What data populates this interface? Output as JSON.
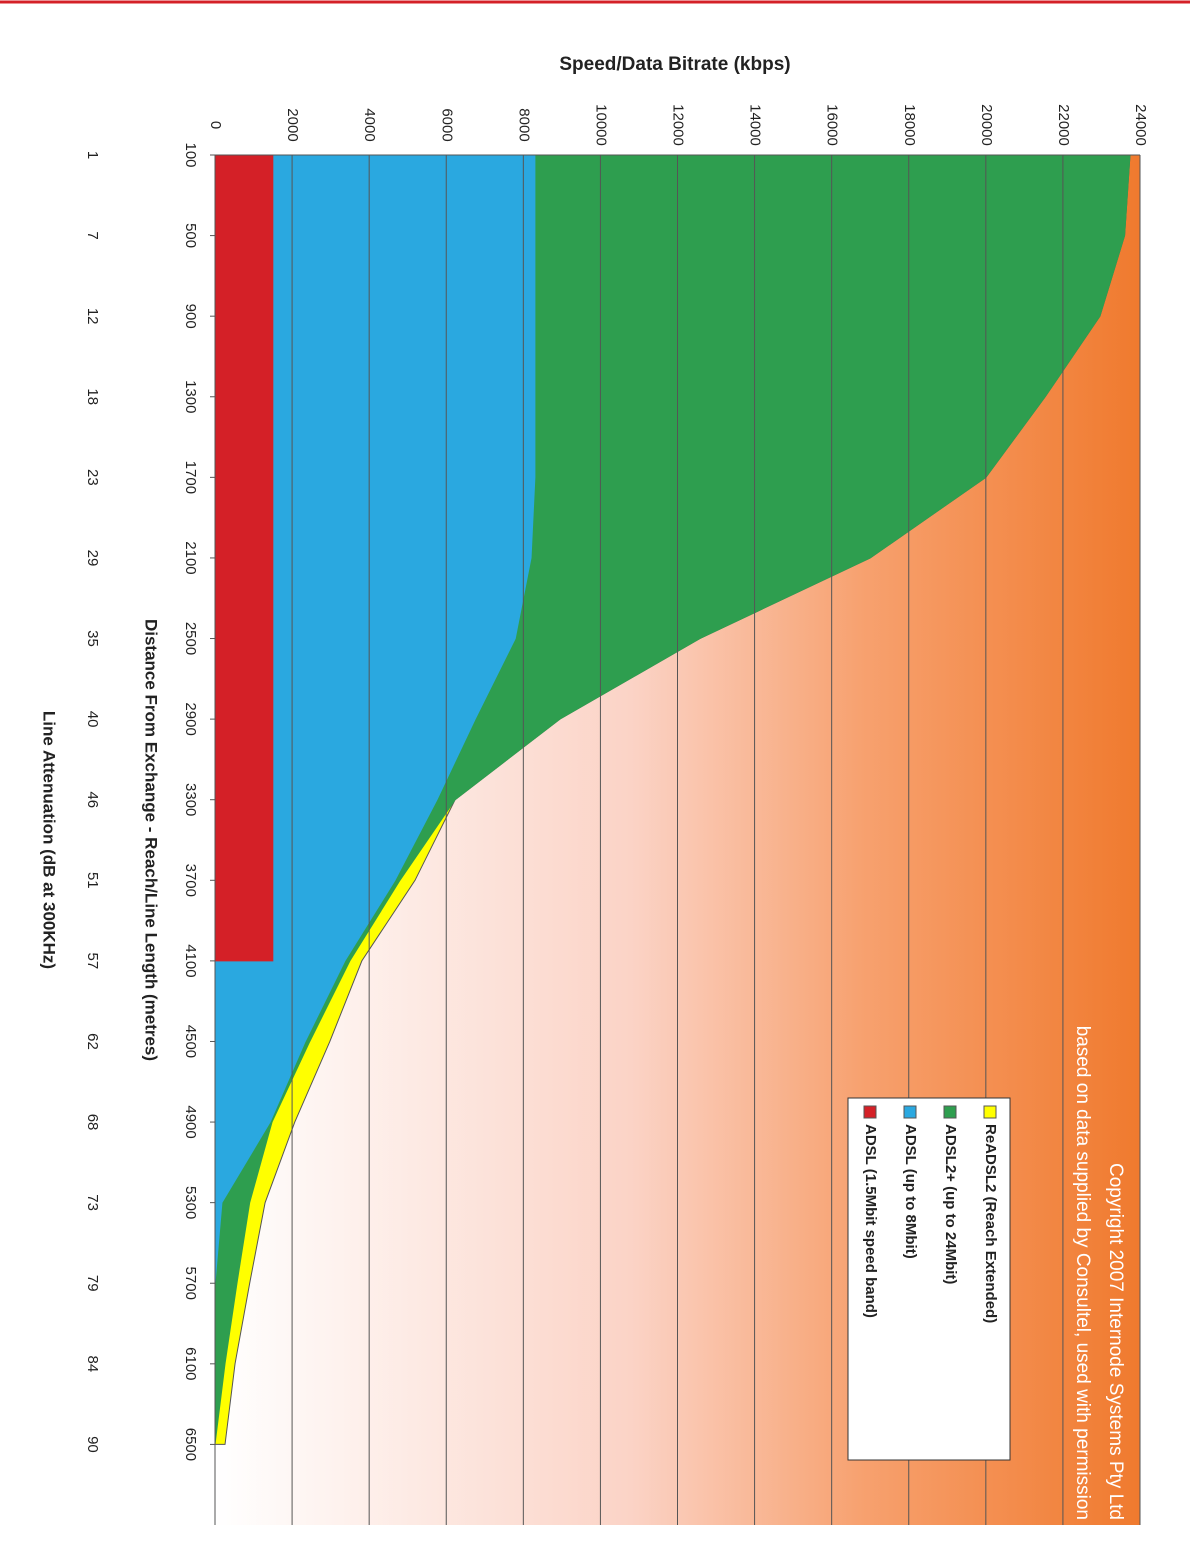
{
  "chart_data": {
    "type": "area",
    "title": "Speed/Data Bitrate (kbps)",
    "x_label": "Distance From Exchange - Reach/Line Length (metres)",
    "x2_label": "Line Attenuation (dB at 300KHz)",
    "annotation": [
      "Copyright 2007 Internode Systems Pty Ltd",
      "based on data supplied by Consultel, used with permission"
    ],
    "x": [
      100,
      500,
      900,
      1300,
      1700,
      2100,
      2500,
      2900,
      3300,
      3700,
      4100,
      4500,
      4900,
      5300,
      5700,
      6100,
      6500
    ],
    "xticks": [
      100,
      500,
      900,
      1300,
      1700,
      2100,
      2500,
      2900,
      3300,
      3700,
      4100,
      4500,
      4900,
      5300,
      5700,
      6100,
      6500
    ],
    "x2_tick_labels": [
      1,
      7,
      12,
      18,
      23,
      29,
      35,
      40,
      46,
      51,
      57,
      62,
      68,
      73,
      79,
      84,
      90
    ],
    "xlim": [
      100,
      6900
    ],
    "ylim": [
      0,
      24000
    ],
    "yticks": [
      0,
      2000,
      4000,
      6000,
      8000,
      10000,
      12000,
      14000,
      16000,
      18000,
      20000,
      22000,
      24000
    ],
    "grid": true,
    "legend": "lower right",
    "series": [
      {
        "name": "ReADSL2 (Reach Extended)",
        "color": "#ffff00",
        "values": [
          23740,
          23600,
          22960,
          21540,
          20000,
          17000,
          12580,
          8950,
          6230,
          5190,
          3810,
          2980,
          2070,
          1300,
          900,
          520,
          260
        ]
      },
      {
        "name": "ADSL2+ (up to 24Mbit)",
        "color": "#2e9e4f",
        "values": [
          23740,
          23600,
          22960,
          21540,
          20000,
          17000,
          12580,
          8950,
          6230,
          4800,
          3500,
          2460,
          1480,
          900,
          570,
          260,
          0
        ]
      },
      {
        "name": "ADSL (up to 8Mbit)",
        "color": "#2aa8e0",
        "values": [
          8300,
          8300,
          8300,
          8300,
          8300,
          8200,
          7790,
          6750,
          5760,
          4670,
          3370,
          2340,
          1430,
          180,
          0,
          null,
          null
        ]
      },
      {
        "name": "ADSL (1.5Mbit speed band)",
        "color": "#d42027",
        "values": [
          1500,
          1500,
          1500,
          1500,
          1500,
          1500,
          1500,
          1500,
          1500,
          1500,
          1500,
          null,
          null,
          null,
          null,
          null,
          null
        ]
      }
    ]
  }
}
